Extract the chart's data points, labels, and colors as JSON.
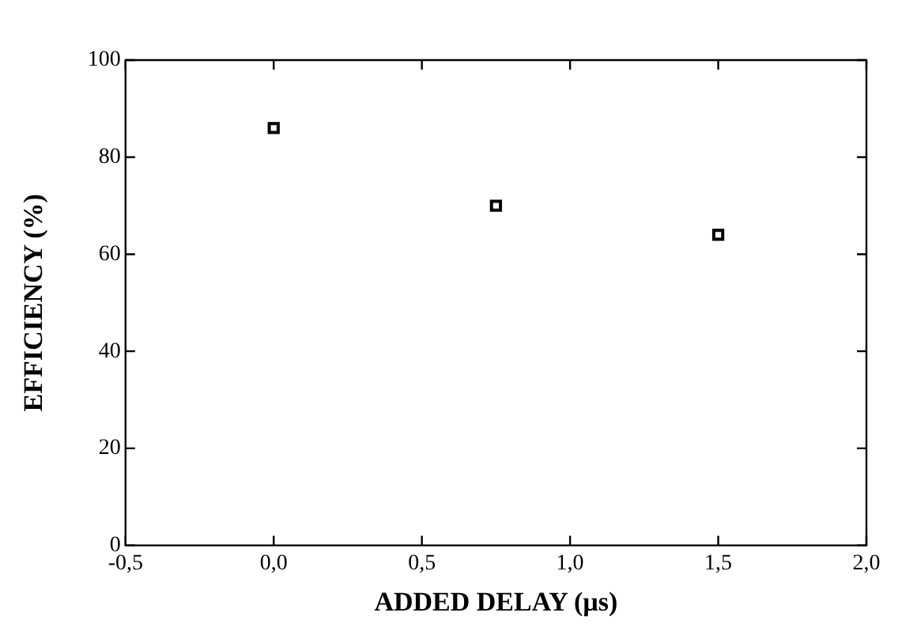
{
  "chart_data": {
    "type": "scatter",
    "xlabel": "ADDED DELAY (µs)",
    "ylabel": "EFFICIENCY (%)",
    "x": [
      0,
      0.75,
      1.5
    ],
    "values": [
      86,
      70,
      64
    ],
    "color": "#000000",
    "marker": "square",
    "xlim": [
      -0.5,
      2.0
    ],
    "xticks": [
      {
        "value": -0.5,
        "label": "-0,5"
      },
      {
        "value": 0,
        "label": "0,0"
      },
      {
        "value": 0.5,
        "label": "0,5"
      },
      {
        "value": 1.0,
        "label": "1,0"
      },
      {
        "value": 1.5,
        "label": "1,5"
      },
      {
        "value": 2.0,
        "label": "2,0"
      }
    ],
    "ylim": [
      0,
      100
    ],
    "yticks": [
      0,
      20,
      40,
      60,
      80,
      100
    ]
  }
}
